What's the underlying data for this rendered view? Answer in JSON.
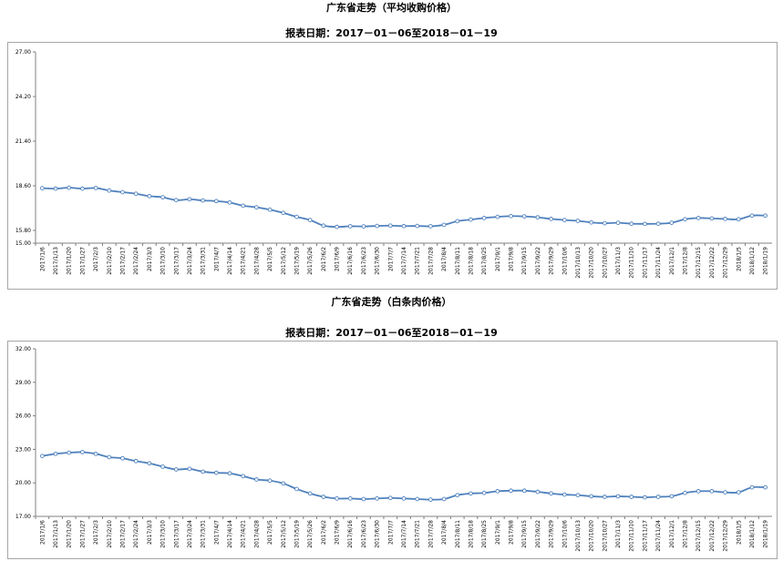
{
  "chart_data": [
    {
      "type": "line",
      "title": "广东省走势（平均收购价格）",
      "subtitle": "报表日期：2017－01－06至2018－01－19",
      "ylim": [
        15.0,
        27.0
      ],
      "yticks": [
        "27.00",
        "24.20",
        "21.40",
        "18.60",
        "15.80",
        "15.00"
      ],
      "ytick_values": [
        27.0,
        24.2,
        21.4,
        18.6,
        15.8,
        15.0
      ],
      "grid": false,
      "color": "#4f81bd",
      "categories": [
        "2017/1/6",
        "2017/1/13",
        "2017/1/20",
        "2017/1/27",
        "2017/2/3",
        "2017/2/10",
        "2017/2/17",
        "2017/2/24",
        "2017/3/3",
        "2017/3/10",
        "2017/3/17",
        "2017/3/24",
        "2017/3/31",
        "2017/4/7",
        "2017/4/14",
        "2017/4/21",
        "2017/4/28",
        "2017/5/5",
        "2017/5/12",
        "2017/5/19",
        "2017/5/26",
        "2017/6/2",
        "2017/6/9",
        "2017/6/16",
        "2017/6/23",
        "2017/6/30",
        "2017/7/7",
        "2017/7/14",
        "2017/7/21",
        "2017/7/28",
        "2017/8/4",
        "2017/8/11",
        "2017/8/18",
        "2017/8/25",
        "2017/9/1",
        "2017/9/8",
        "2017/9/15",
        "2017/9/22",
        "2017/9/29",
        "2017/10/6",
        "2017/10/13",
        "2017/10/20",
        "2017/10/27",
        "2017/11/3",
        "2017/11/10",
        "2017/11/17",
        "2017/11/24",
        "2017/12/1",
        "2017/12/8",
        "2017/12/15",
        "2017/12/22",
        "2017/12/29",
        "2018/1/5",
        "2018/1/12",
        "2018/1/19"
      ],
      "values": [
        18.45,
        18.42,
        18.48,
        18.42,
        18.46,
        18.3,
        18.2,
        18.1,
        17.95,
        17.88,
        17.7,
        17.75,
        17.68,
        17.64,
        17.55,
        17.35,
        17.25,
        17.1,
        16.9,
        16.65,
        16.45,
        16.1,
        16.02,
        16.06,
        16.05,
        16.08,
        16.1,
        16.07,
        16.08,
        16.06,
        16.15,
        16.38,
        16.48,
        16.58,
        16.65,
        16.7,
        16.68,
        16.62,
        16.52,
        16.45,
        16.4,
        16.3,
        16.25,
        16.28,
        16.22,
        16.21,
        16.22,
        16.28,
        16.5,
        16.58,
        16.55,
        16.52,
        16.5,
        16.73,
        16.73
      ]
    },
    {
      "type": "line",
      "title": "广东省走势（白条肉价格）",
      "subtitle": "报表日期：2017－01－06至2018－01－19",
      "ylim": [
        17.0,
        32.0
      ],
      "yticks": [
        "32.00",
        "29.00",
        "26.00",
        "23.00",
        "20.00",
        "17.00"
      ],
      "ytick_values": [
        32.0,
        29.0,
        26.0,
        23.0,
        20.0,
        17.0
      ],
      "grid": false,
      "color": "#4f81bd",
      "categories": [
        "2017/1/6",
        "2017/1/13",
        "2017/1/20",
        "2017/1/27",
        "2017/2/3",
        "2017/2/10",
        "2017/2/17",
        "2017/2/24",
        "2017/3/3",
        "2017/3/10",
        "2017/3/17",
        "2017/3/24",
        "2017/3/31",
        "2017/4/7",
        "2017/4/14",
        "2017/4/21",
        "2017/4/28",
        "2017/5/5",
        "2017/5/12",
        "2017/5/19",
        "2017/5/26",
        "2017/6/2",
        "2017/6/9",
        "2017/6/16",
        "2017/6/23",
        "2017/6/30",
        "2017/7/7",
        "2017/7/14",
        "2017/7/21",
        "2017/7/28",
        "2017/8/4",
        "2017/8/11",
        "2017/8/18",
        "2017/8/25",
        "2017/9/1",
        "2017/9/8",
        "2017/9/15",
        "2017/9/22",
        "2017/9/29",
        "2017/10/6",
        "2017/10/13",
        "2017/10/20",
        "2017/10/27",
        "2017/11/3",
        "2017/11/10",
        "2017/11/17",
        "2017/11/24",
        "2017/12/1",
        "2017/12/8",
        "2017/12/15",
        "2017/12/22",
        "2017/12/29",
        "2018/1/5",
        "2018/1/12",
        "2018/1/19"
      ],
      "values": [
        22.4,
        22.6,
        22.7,
        22.75,
        22.6,
        22.3,
        22.2,
        21.95,
        21.75,
        21.45,
        21.2,
        21.25,
        21.0,
        20.9,
        20.85,
        20.6,
        20.3,
        20.2,
        19.95,
        19.45,
        19.05,
        18.75,
        18.6,
        18.6,
        18.55,
        18.6,
        18.65,
        18.6,
        18.55,
        18.5,
        18.55,
        18.9,
        19.05,
        19.1,
        19.25,
        19.3,
        19.3,
        19.2,
        19.05,
        18.95,
        18.9,
        18.8,
        18.75,
        18.8,
        18.75,
        18.7,
        18.75,
        18.8,
        19.1,
        19.25,
        19.25,
        19.15,
        19.15,
        19.6,
        19.6
      ]
    }
  ]
}
